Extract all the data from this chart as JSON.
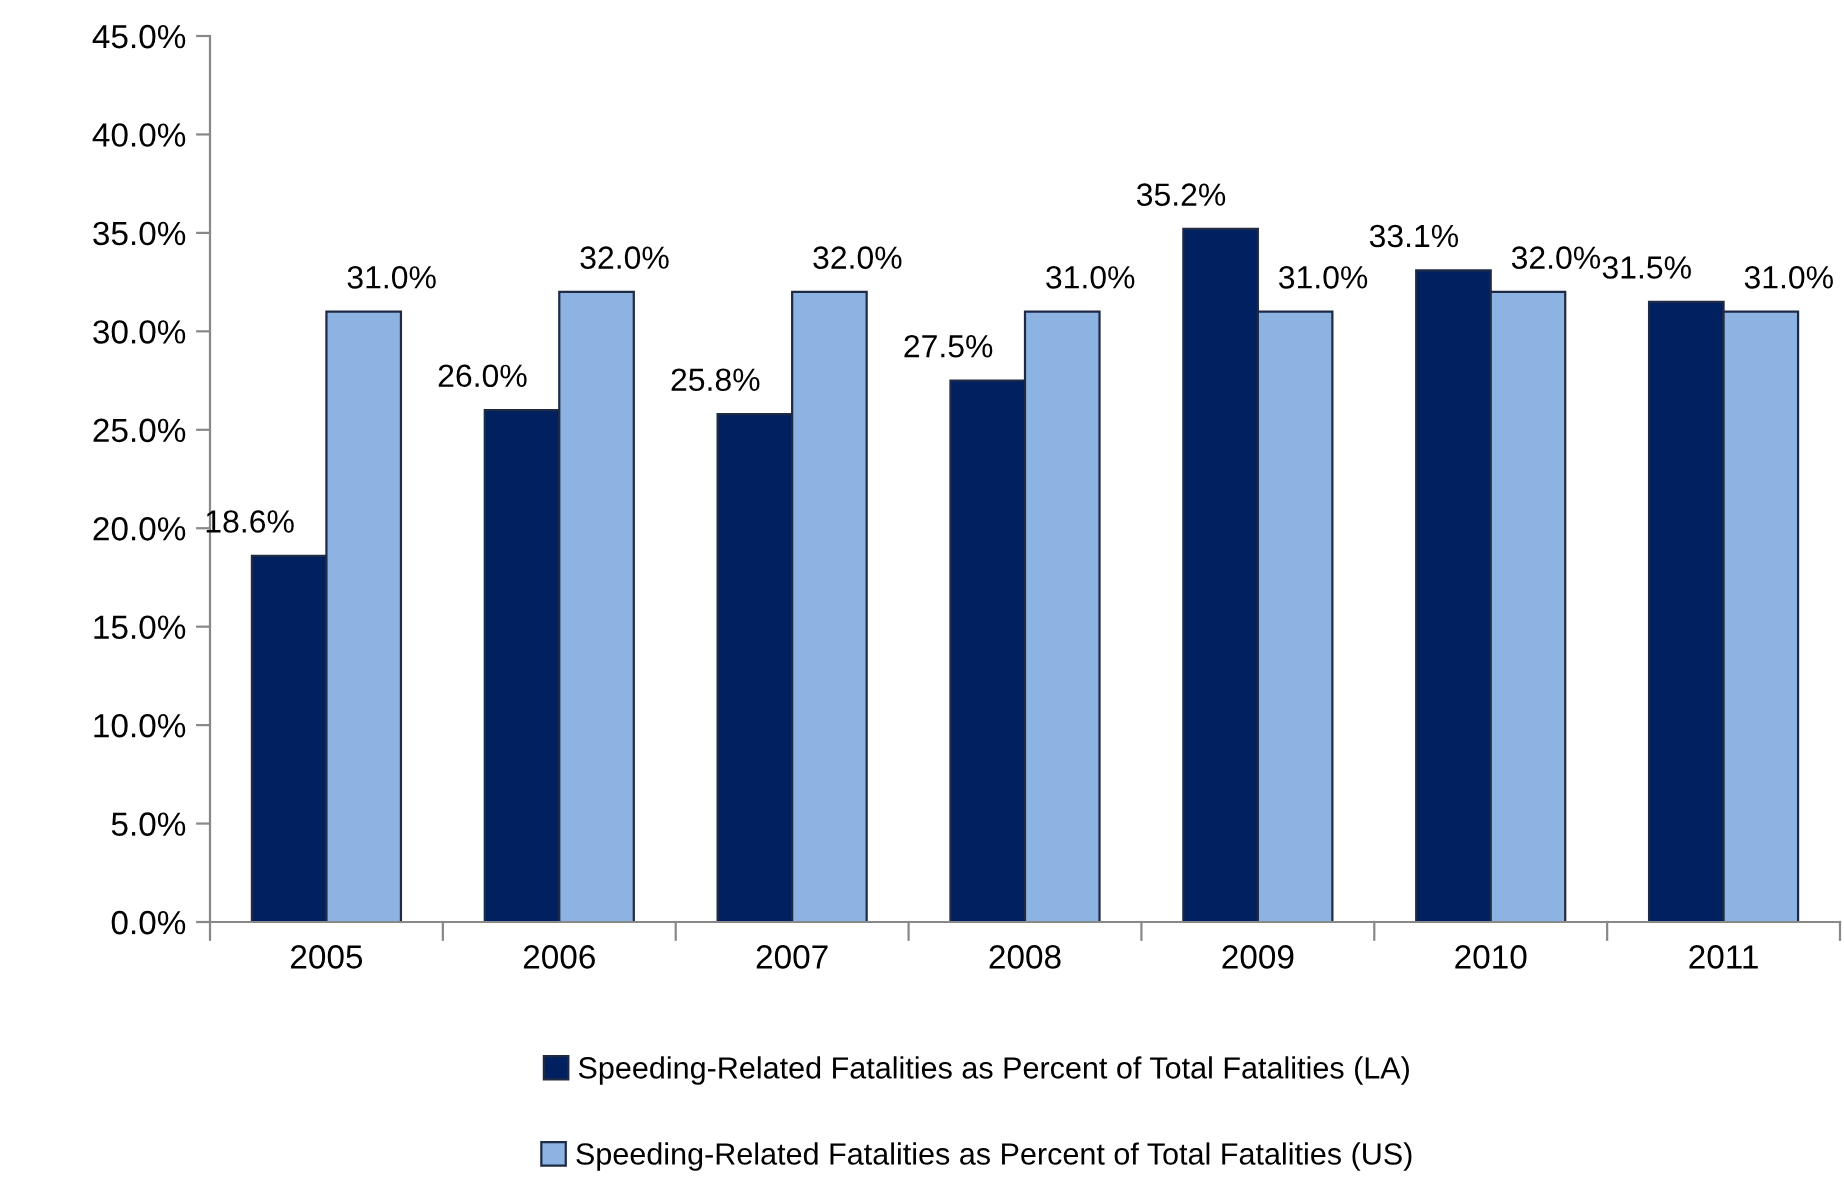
{
  "chart_data": {
    "type": "bar",
    "categories": [
      "2005",
      "2006",
      "2007",
      "2008",
      "2009",
      "2010",
      "2011"
    ],
    "series": [
      {
        "name": "Speeding-Related Fatalities as Percent of Total Fatalities (LA)",
        "color": "#002060",
        "values": [
          18.6,
          26.0,
          25.8,
          27.5,
          35.2,
          33.1,
          31.5
        ],
        "value_labels": [
          "18.6%",
          "26.0%",
          "25.8%",
          "27.5%",
          "35.2%",
          "33.1%",
          "31.5%"
        ]
      },
      {
        "name": "Speeding-Related Fatalities as Percent of Total Fatalities (US)",
        "color": "#8db3e2",
        "values": [
          31.0,
          32.0,
          32.0,
          31.0,
          31.0,
          32.0,
          31.0
        ],
        "value_labels": [
          "31.0%",
          "32.0%",
          "32.0%",
          "31.0%",
          "31.0%",
          "32.0%",
          "31.0%"
        ]
      }
    ],
    "ylim": [
      0,
      45
    ],
    "yticks": [
      {
        "value": 0,
        "label": "0.0%"
      },
      {
        "value": 5,
        "label": "5.0%"
      },
      {
        "value": 10,
        "label": "10.0%"
      },
      {
        "value": 15,
        "label": "15.0%"
      },
      {
        "value": 20,
        "label": "20.0%"
      },
      {
        "value": 25,
        "label": "25.0%"
      },
      {
        "value": 30,
        "label": "30.0%"
      },
      {
        "value": 35,
        "label": "35.0%"
      },
      {
        "value": 40,
        "label": "40.0%"
      },
      {
        "value": 45,
        "label": "45.0%"
      }
    ],
    "grid": false,
    "legend": "bottom"
  }
}
